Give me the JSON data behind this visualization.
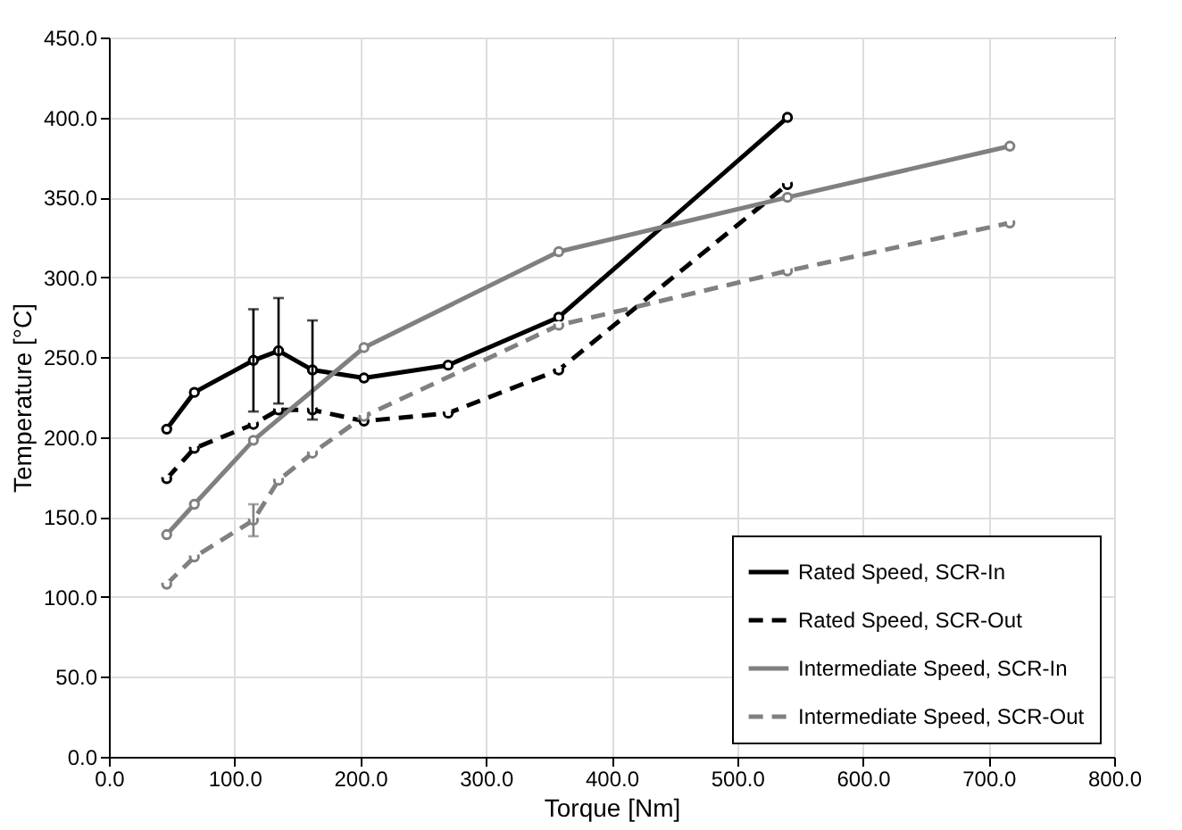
{
  "chart_data": {
    "type": "line",
    "xlabel": "Torque [Nm]",
    "ylabel": "Temperature [°C]",
    "xlim": [
      0,
      800
    ],
    "ylim": [
      0,
      450
    ],
    "xticks": [
      {
        "value": 0,
        "label": "0.0"
      },
      {
        "value": 100,
        "label": "100.0"
      },
      {
        "value": 200,
        "label": "200.0"
      },
      {
        "value": 300,
        "label": "300.0"
      },
      {
        "value": 400,
        "label": "400.0"
      },
      {
        "value": 500,
        "label": "500.0"
      },
      {
        "value": 600,
        "label": "600.0"
      },
      {
        "value": 700,
        "label": "700.0"
      },
      {
        "value": 800,
        "label": "800.0"
      }
    ],
    "yticks": [
      {
        "value": 0,
        "label": "0.0"
      },
      {
        "value": 50,
        "label": "50.0"
      },
      {
        "value": 100,
        "label": "100.0"
      },
      {
        "value": 150,
        "label": "150.0"
      },
      {
        "value": 200,
        "label": "200.0"
      },
      {
        "value": 250,
        "label": "250.0"
      },
      {
        "value": 300,
        "label": "300.0"
      },
      {
        "value": 350,
        "label": "350.0"
      },
      {
        "value": 400,
        "label": "400.0"
      },
      {
        "value": 450,
        "label": "450.0"
      }
    ],
    "grid": true,
    "legend": "bottom right",
    "marker": "circle",
    "series": [
      {
        "name": "Rated Speed, SCR-In",
        "color": "#000000",
        "line_style": "solid",
        "x": [
          46,
          68,
          115,
          135,
          162,
          203,
          270,
          358,
          540
        ],
        "values": [
          205,
          228,
          248,
          254,
          242,
          237,
          245,
          275,
          400
        ],
        "errors": [
          null,
          null,
          32,
          33,
          31,
          null,
          null,
          null,
          null
        ]
      },
      {
        "name": "Rated Speed, SCR-Out",
        "color": "#000000",
        "line_style": "dashed",
        "x": [
          46,
          68,
          115,
          135,
          162,
          203,
          270,
          358,
          540
        ],
        "values": [
          174,
          193,
          208,
          217,
          217,
          210,
          215,
          242,
          358
        ]
      },
      {
        "name": "Intermediate Speed, SCR-In",
        "color": "#808080",
        "line_style": "solid",
        "x": [
          46,
          68,
          115,
          203,
          358,
          540,
          717
        ],
        "values": [
          139,
          158,
          198,
          256,
          316,
          350,
          382
        ]
      },
      {
        "name": "Intermediate Speed, SCR-Out",
        "color": "#808080",
        "line_style": "dashed",
        "x": [
          46,
          68,
          115,
          135,
          162,
          203,
          358,
          540,
          717
        ],
        "values": [
          108,
          125,
          148,
          173,
          190,
          213,
          270,
          304,
          334
        ],
        "errors": [
          null,
          null,
          10,
          null,
          null,
          null,
          null,
          null,
          null
        ]
      }
    ]
  }
}
